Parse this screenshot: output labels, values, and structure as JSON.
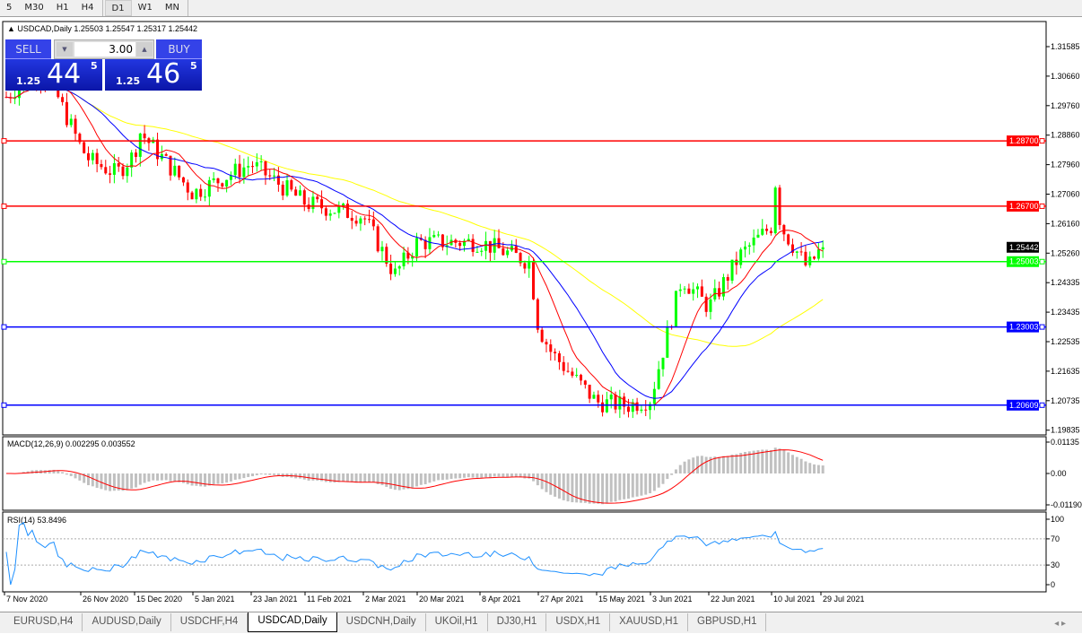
{
  "timeframes": [
    "5",
    "M30",
    "H1",
    "H4",
    "D1",
    "W1",
    "MN"
  ],
  "active_timeframe": "D1",
  "chart": {
    "header": "USDCAD,Daily  1.25503 1.25547 1.25317 1.25442",
    "symbol": "USDCAD",
    "period": "Daily",
    "ohlc": [
      1.25503,
      1.25547,
      1.25317,
      1.25442
    ]
  },
  "trade_panel": {
    "sell_label": "SELL",
    "buy_label": "BUY",
    "lot": "3.00",
    "sell": {
      "big": "1.25",
      "pips": "44",
      "frac": "5"
    },
    "buy": {
      "big": "1.25",
      "pips": "46",
      "frac": "5"
    }
  },
  "price_axis": [
    "1.31585",
    "1.30660",
    "1.29760",
    "1.28860",
    "1.27960",
    "1.27060",
    "1.26160",
    "1.25260",
    "1.24335",
    "1.23435",
    "1.22535",
    "1.21635",
    "1.20735",
    "1.19835"
  ],
  "current_price": "1.25442",
  "levels": [
    {
      "price": "1.28700",
      "color": "#ff0000"
    },
    {
      "price": "1.26700",
      "color": "#ff0000"
    },
    {
      "price": "1.25003",
      "color": "#00ff00"
    },
    {
      "price": "1.23003",
      "color": "#0000ff"
    },
    {
      "price": "1.20609",
      "color": "#0000ff"
    }
  ],
  "macd": {
    "label": "MACD(12,26,9) 0.002295 0.003552",
    "axis": [
      "0.01135",
      "0.00",
      "-0.01190"
    ]
  },
  "rsi": {
    "label": "RSI(14) 53.8496",
    "axis": [
      "100",
      "70",
      "30",
      "0"
    ]
  },
  "dates": [
    "7 Nov 2020",
    "26 Nov 2020",
    "15 Dec 2020",
    "5 Jan 2021",
    "23 Jan 2021",
    "11 Feb 2021",
    "2 Mar 2021",
    "20 Mar 2021",
    "8 Apr 2021",
    "27 Apr 2021",
    "15 May 2021",
    "3 Jun 2021",
    "22 Jun 2021",
    "10 Jul 2021",
    "29 Jul 2021"
  ],
  "tabs": [
    "EURUSD,H4",
    "AUDUSD,Daily",
    "USDCHF,H4",
    "USDCAD,Daily",
    "USDCNH,Daily",
    "UKOil,H1",
    "DJ30,H1",
    "USDX,H1",
    "XAUUSD,H1",
    "GBPUSD,H1"
  ],
  "active_tab": "USDCAD,Daily",
  "colors": {
    "bull": "#00ff00",
    "bear": "#ff0000",
    "ma_fast": "#ff0000",
    "ma_mid": "#0000ff",
    "ma_slow": "#ffff00",
    "macd_hist": "#c0c0c0",
    "macd_signal": "#ff0000",
    "rsi": "#1e90ff"
  },
  "chart_data": {
    "type": "candlestick",
    "price_range": [
      1.19835,
      1.31585
    ],
    "approx_closes": [
      {
        "date": "7 Nov 2020",
        "close": 1.3
      },
      {
        "date": "26 Nov 2020",
        "close": 1.285
      },
      {
        "date": "15 Dec 2020",
        "close": 1.283
      },
      {
        "date": "5 Jan 2021",
        "close": 1.271
      },
      {
        "date": "23 Jan 2021",
        "close": 1.28
      },
      {
        "date": "11 Feb 2021",
        "close": 1.268
      },
      {
        "date": "2 Mar 2021",
        "close": 1.264
      },
      {
        "date": "20 Mar 2021",
        "close": 1.256
      },
      {
        "date": "8 Apr 2021",
        "close": 1.256
      },
      {
        "date": "27 Apr 2021",
        "close": 1.23
      },
      {
        "date": "15 May 2021",
        "close": 1.207
      },
      {
        "date": "3 Jun 2021",
        "close": 1.208
      },
      {
        "date": "22 Jun 2021",
        "close": 1.236
      },
      {
        "date": "10 Jul 2021",
        "close": 1.261
      },
      {
        "date": "29 Jul 2021",
        "close": 1.254
      }
    ],
    "last_close": 1.25442
  }
}
